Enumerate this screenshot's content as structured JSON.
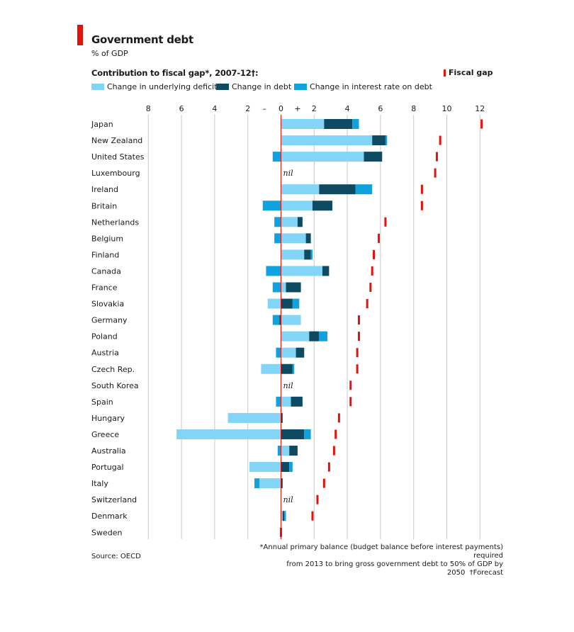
{
  "title": "Government debt",
  "subtitle": "% of GDP",
  "chart_heading": "Contribution to fiscal gap*, 2007-12†:",
  "source": "Source: OECD",
  "footnote_line1": "*Annual primary balance (budget balance before interest payments) required",
  "footnote_line2": "from 2013 to bring gross government debt to 50% of GDP by 2050",
  "footnote_forecast": "†Forecast",
  "colors": {
    "underlying_deficit": "#82d5f7",
    "debt": "#0e4b63",
    "interest": "#0fa2de",
    "fiscal_gap": "#e3120b",
    "grid": "#c8c8c8"
  },
  "chart_data": {
    "type": "bar",
    "orientation": "horizontal",
    "stacked": true,
    "xlim": [
      -8,
      12
    ],
    "axis_ticks": [
      {
        "value": -8,
        "label": "8"
      },
      {
        "value": -6,
        "label": "6"
      },
      {
        "value": -4,
        "label": "4"
      },
      {
        "value": -2,
        "label": "2"
      },
      {
        "value": -1,
        "label": "–"
      },
      {
        "value": 0,
        "label": "0"
      },
      {
        "value": 1,
        "label": "+"
      },
      {
        "value": 2,
        "label": "2"
      },
      {
        "value": 4,
        "label": "4"
      },
      {
        "value": 6,
        "label": "6"
      },
      {
        "value": 8,
        "label": "8"
      },
      {
        "value": 10,
        "label": "10"
      },
      {
        "value": 12,
        "label": "12"
      }
    ],
    "nil_label": "nil",
    "series": [
      {
        "key": "deficit",
        "name": "Change in underlying deficit"
      },
      {
        "key": "debt",
        "name": "Change in debt"
      },
      {
        "key": "interest",
        "name": "Change in interest rate on debt"
      },
      {
        "key": "gap",
        "name": "Fiscal gap"
      }
    ],
    "countries": [
      {
        "name": "Japan",
        "deficit": 2.6,
        "debt": 1.7,
        "interest": 0.4,
        "gap": 12.1
      },
      {
        "name": "New Zealand",
        "deficit": 5.5,
        "debt": 0.8,
        "interest": 0.1,
        "gap": 9.6
      },
      {
        "name": "United States",
        "deficit": 5.0,
        "debt": 1.1,
        "interest": -0.5,
        "gap": 9.4
      },
      {
        "name": "Luxembourg",
        "deficit": 0,
        "debt": 0,
        "interest": 0,
        "gap": 9.3,
        "nil": true
      },
      {
        "name": "Ireland",
        "deficit": 2.3,
        "debt": 2.2,
        "interest": 1.0,
        "gap": 8.5
      },
      {
        "name": "Britain",
        "deficit": 1.9,
        "debt": 1.2,
        "interest": -1.1,
        "gap": 8.5
      },
      {
        "name": "Netherlands",
        "deficit": 1.0,
        "debt": 0.3,
        "interest": -0.4,
        "gap": 6.3
      },
      {
        "name": "Belgium",
        "deficit": 1.5,
        "debt": 0.3,
        "interest": -0.4,
        "gap": 5.9
      },
      {
        "name": "Finland",
        "deficit": 1.4,
        "debt": 0.4,
        "interest": 0.1,
        "gap": 5.6
      },
      {
        "name": "Canada",
        "deficit": 2.5,
        "debt": 0.4,
        "interest": -0.9,
        "gap": 5.5
      },
      {
        "name": "France",
        "deficit": 0.3,
        "debt": 0.9,
        "interest": -0.5,
        "gap": 5.4
      },
      {
        "name": "Slovakia",
        "deficit": -0.8,
        "debt": 0.7,
        "interest": 0.4,
        "gap": 5.2
      },
      {
        "name": "Germany",
        "deficit": 1.2,
        "debt": -0.1,
        "interest": -0.4,
        "gap": 4.7
      },
      {
        "name": "Poland",
        "deficit": 1.7,
        "debt": 0.6,
        "interest": 0.5,
        "gap": 4.7
      },
      {
        "name": "Austria",
        "deficit": 0.9,
        "debt": 0.5,
        "interest": -0.3,
        "gap": 4.6
      },
      {
        "name": "Czech Rep.",
        "deficit": -1.2,
        "debt": 0.7,
        "interest": 0.1,
        "gap": 4.6
      },
      {
        "name": "South Korea",
        "deficit": 0,
        "debt": 0,
        "interest": 0,
        "gap": 4.2,
        "nil": true
      },
      {
        "name": "Spain",
        "deficit": 0.6,
        "debt": 0.7,
        "interest": -0.3,
        "gap": 4.2
      },
      {
        "name": "Hungary",
        "deficit": -3.2,
        "debt": 0.1,
        "interest": 0,
        "gap": 3.5
      },
      {
        "name": "Greece",
        "deficit": -6.3,
        "debt": 1.4,
        "interest": 0.4,
        "gap": 3.3
      },
      {
        "name": "Australia",
        "deficit": 0.5,
        "debt": 0.5,
        "interest": -0.2,
        "gap": 3.2
      },
      {
        "name": "Portugal",
        "deficit": -1.9,
        "debt": 0.5,
        "interest": 0.2,
        "gap": 2.9
      },
      {
        "name": "Italy",
        "deficit": -1.3,
        "debt": 0.1,
        "interest": -0.3,
        "gap": 2.6
      },
      {
        "name": "Switzerland",
        "deficit": 0,
        "debt": 0,
        "interest": 0,
        "gap": 2.2,
        "nil": true
      },
      {
        "name": "Denmark",
        "deficit": 0.1,
        "debt": 0.1,
        "interest": 0.1,
        "gap": 1.9
      },
      {
        "name": "Sweden",
        "deficit": 0,
        "debt": 0,
        "interest": 0,
        "gap": 0
      }
    ]
  }
}
